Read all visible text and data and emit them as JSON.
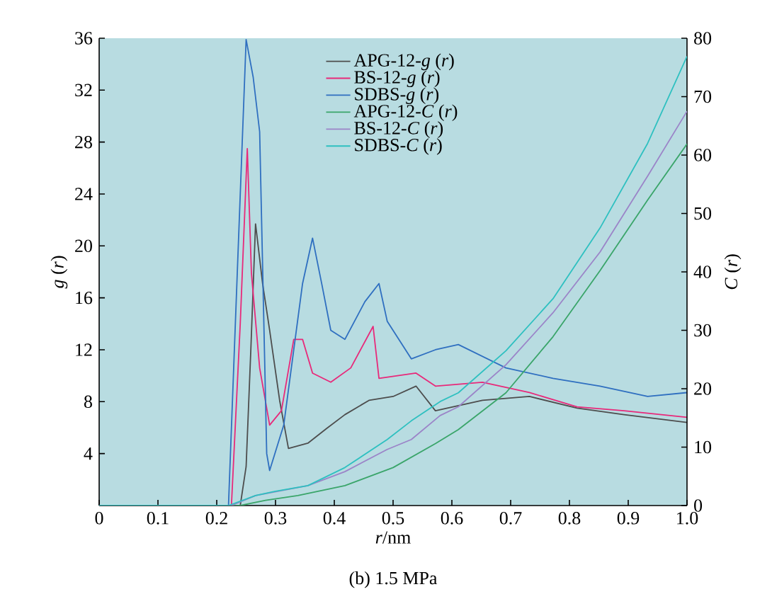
{
  "chart_data": {
    "type": "line",
    "title": "(b) 1.5 MPa",
    "xlabel": "*r*/nm",
    "ylabel": "*g* (*r*)",
    "y2label": "*C* (*r*)",
    "xlim": [
      0,
      1
    ],
    "xticks": [
      0,
      0.1,
      0.2,
      0.3,
      0.4,
      0.5,
      0.6,
      0.7,
      0.8,
      0.9,
      {
        "value": 1,
        "label": "1.0"
      }
    ],
    "ylim": [
      0,
      36
    ],
    "yticks": [
      4,
      8,
      12,
      16,
      20,
      24,
      28,
      32,
      36
    ],
    "y2lim": [
      0,
      80
    ],
    "y2ticks": [
      0,
      10,
      20,
      30,
      40,
      50,
      60,
      70,
      80
    ],
    "legend": "top",
    "marker": "none",
    "line_style": "solid",
    "series": [
      {
        "name": "APG-12-*g* (*r*)",
        "color": "#4d4d4d",
        "x": [
          0,
          0.24,
          0.25,
          0.258,
          0.266,
          0.278,
          0.29,
          0.307,
          0.322,
          0.355,
          0.386,
          0.418,
          0.459,
          0.5,
          0.539,
          0.572,
          0.652,
          0.732,
          0.813,
          0.893,
          1.0
        ],
        "values": [
          0,
          0,
          3,
          12,
          21.7,
          17.1,
          13.5,
          8.1,
          4.4,
          4.8,
          5.9,
          7.0,
          8.1,
          8.4,
          9.2,
          7.3,
          8.1,
          8.4,
          7.5,
          7.0,
          6.4
        ]
      },
      {
        "name": "BS-12-*g* (*r*)",
        "color": "#e8297a",
        "x": [
          0,
          0.225,
          0.24,
          0.252,
          0.259,
          0.273,
          0.29,
          0.31,
          0.331,
          0.346,
          0.363,
          0.394,
          0.428,
          0.466,
          0.476,
          0.539,
          0.572,
          0.652,
          0.732,
          0.813,
          0.893,
          1.0
        ],
        "values": [
          0,
          0,
          14,
          27.5,
          17.9,
          10.6,
          6.2,
          7.3,
          12.8,
          12.8,
          10.2,
          9.5,
          10.6,
          13.8,
          9.8,
          10.2,
          9.2,
          9.5,
          8.7,
          7.6,
          7.3,
          6.8
        ]
      },
      {
        "name": "SDBS-*g* (*r*)",
        "color": "#2f6fc0",
        "x": [
          0,
          0.22,
          0.235,
          0.25,
          0.262,
          0.273,
          0.285,
          0.29,
          0.314,
          0.346,
          0.363,
          0.379,
          0.394,
          0.418,
          0.452,
          0.476,
          0.49,
          0.531,
          0.572,
          0.611,
          0.692,
          0.772,
          0.852,
          0.933,
          1.0
        ],
        "values": [
          0,
          0,
          18,
          35.9,
          33,
          28.8,
          4.0,
          2.7,
          6.2,
          17.1,
          20.6,
          17.0,
          13.5,
          12.8,
          15.7,
          17.1,
          14.2,
          11.3,
          12.0,
          12.4,
          10.6,
          9.8,
          9.2,
          8.4,
          8.7
        ]
      },
      {
        "name": "APG-12-*C* (*r*)",
        "color": "#3aa56a",
        "axis": "y2",
        "x": [
          0,
          0.24,
          0.283,
          0.338,
          0.418,
          0.5,
          0.572,
          0.611,
          0.692,
          0.772,
          0.852,
          0.933,
          1.0
        ],
        "values": [
          0,
          0,
          0.9,
          1.7,
          3.4,
          6.5,
          10.6,
          13.0,
          19.3,
          28.9,
          40.2,
          52.3,
          61.9
        ]
      },
      {
        "name": "BS-12-*C* (*r*)",
        "color": "#9b84c8",
        "axis": "y2",
        "x": [
          0,
          0.225,
          0.266,
          0.298,
          0.355,
          0.418,
          0.49,
          0.531,
          0.58,
          0.611,
          0.692,
          0.772,
          0.852,
          0.933,
          1.0
        ],
        "values": [
          0,
          0,
          1.7,
          null,
          3.4,
          5.8,
          9.6,
          11.3,
          15.4,
          16.9,
          24.1,
          33.0,
          43.4,
          56.4,
          67.5
        ]
      },
      {
        "name": "SDBS-*C* (*r*)",
        "color": "#2ec0c0",
        "axis": "y2",
        "x": [
          0,
          0.22,
          0.266,
          0.298,
          0.355,
          0.418,
          0.49,
          0.531,
          0.58,
          0.611,
          0.692,
          0.772,
          0.852,
          0.933,
          1.0
        ],
        "values": [
          0,
          0,
          1.7,
          2.4,
          3.4,
          6.5,
          11.3,
          14.5,
          17.8,
          19.3,
          26.5,
          35.4,
          47.5,
          62.0,
          76.9
        ]
      }
    ]
  }
}
